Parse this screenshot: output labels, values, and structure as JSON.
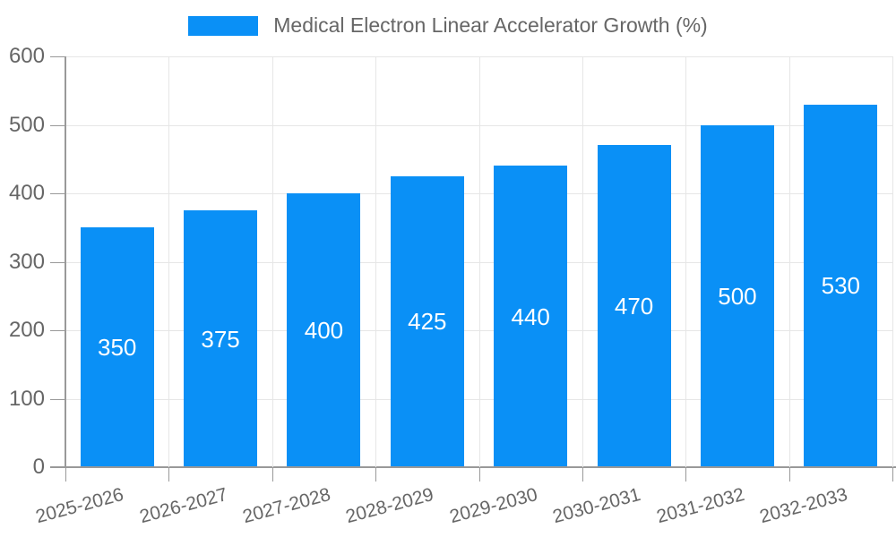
{
  "legend": {
    "items": [
      {
        "label": "Medical Electron Linear Accelerator Growth (%)",
        "color": "#0a90f6"
      }
    ]
  },
  "chart_data": {
    "type": "bar",
    "title": "Medical Electron Linear Accelerator Growth (%)",
    "categories": [
      "2025-2026",
      "2026-2027",
      "2027-2028",
      "2028-2029",
      "2029-2030",
      "2030-2031",
      "2031-2032",
      "2032-2033"
    ],
    "values": [
      350,
      375,
      400,
      425,
      440,
      470,
      500,
      530
    ],
    "xlabel": "",
    "ylabel": "",
    "ylim": [
      0,
      600
    ],
    "yticks": [
      0,
      100,
      200,
      300,
      400,
      500,
      600
    ],
    "grid": true,
    "legend_position": "top",
    "value_labels": "inside-center",
    "colors": {
      "bar": "#0a90f6",
      "axis": "#999999",
      "grid": "#e6e6e6",
      "tick_text": "#666666",
      "value_label": "#ffffff",
      "background": "#ffffff"
    }
  }
}
